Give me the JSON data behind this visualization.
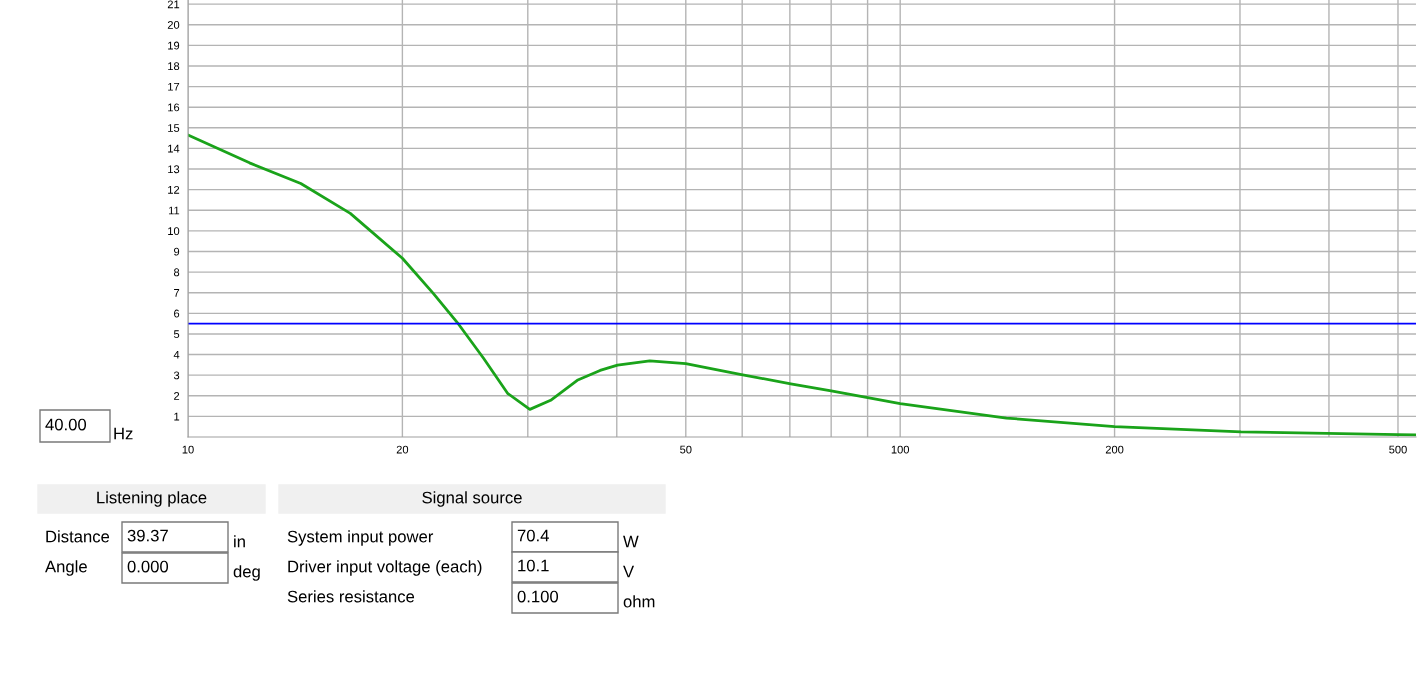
{
  "chart_data": {
    "type": "line",
    "x": [
      10,
      12.2,
      14.4,
      16.9,
      20,
      22.1,
      24.0,
      26.0,
      28.1,
      30.2,
      32.3,
      35.2,
      37.9,
      40.1,
      44.5,
      50,
      59.6,
      70.2,
      80,
      100,
      141,
      200,
      301,
      500,
      530
    ],
    "series": [
      {
        "color": "#1aa31a",
        "values": [
          14.65,
          13.3,
          12.3,
          10.85,
          8.67,
          6.97,
          5.46,
          3.82,
          2.12,
          1.34,
          1.78,
          2.75,
          3.23,
          3.49,
          3.69,
          3.56,
          3.04,
          2.58,
          2.24,
          1.62,
          0.92,
          0.5,
          0.25,
          0.12,
          0.1
        ]
      }
    ],
    "log": "x",
    "xlim": [
      10,
      530
    ],
    "ylim": [
      0,
      21.2
    ],
    "xticks": [
      10,
      {
        "value": 20,
        "label": "20"
      },
      {
        "value": 30,
        "label": null
      },
      {
        "value": 40,
        "label": null
      },
      50,
      {
        "value": 60,
        "label": null
      },
      {
        "value": 70,
        "label": null
      },
      {
        "value": 80,
        "label": null
      },
      {
        "value": 90,
        "label": null
      },
      100,
      200,
      {
        "value": 300,
        "label": null
      },
      {
        "value": 400,
        "label": null
      },
      500
    ],
    "yticks": [
      1,
      2,
      3,
      4,
      5,
      6,
      7,
      8,
      9,
      10,
      11,
      12,
      13,
      14,
      15,
      16,
      17,
      18,
      19,
      20,
      21
    ],
    "grid": true,
    "ref_lines": [
      {
        "axis": "y",
        "value": 5.5,
        "color": "#0000ff"
      }
    ],
    "annotations": [
      "40.00",
      "Hz",
      "Listening place",
      "Distance",
      "39.37",
      "in",
      "Angle",
      "0.000",
      "deg",
      "Signal source",
      "System input power",
      "70.4",
      "W",
      "Driver input voltage (each)",
      "10.1",
      "V",
      "Series resistance",
      "0.100",
      "ohm"
    ]
  }
}
